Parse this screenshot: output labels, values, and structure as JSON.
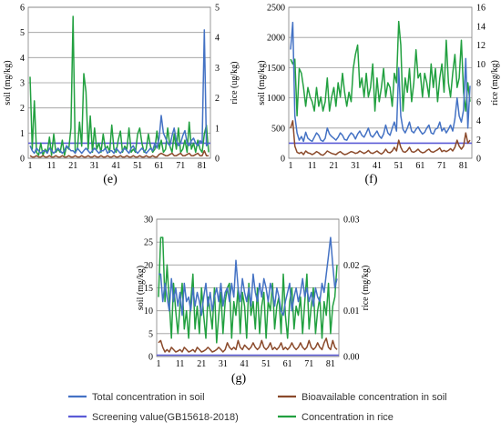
{
  "legend": [
    {
      "label": "Total concentration in soil",
      "color": "#4472c4"
    },
    {
      "label": "Bioavailable  concentration in soil",
      "color": "#8b4a2b"
    },
    {
      "label": "Screening value(GB15618-2018)",
      "color": "#5b5bd6"
    },
    {
      "label": "Concentration in rice",
      "color": "#22a040"
    }
  ],
  "chart_data": [
    {
      "type": "line",
      "panel_label": "(e)",
      "ylabel": "soil (mg/kg)",
      "y2label": "rice (ug/kg)",
      "ylim": [
        0,
        6
      ],
      "y2lim": [
        0,
        5
      ],
      "yticks": [
        0,
        1,
        2,
        3,
        4,
        5,
        6
      ],
      "y2ticks": [
        0,
        1,
        2,
        3,
        4,
        5
      ],
      "xticks": [
        1,
        11,
        21,
        31,
        41,
        51,
        61,
        71,
        81
      ],
      "grid": true,
      "screening_value": 0.6,
      "series": [
        {
          "name": "Total concentration in soil",
          "axis": "left",
          "color": "#4472c4",
          "values": [
            0.5,
            0.3,
            0.2,
            0.4,
            0.3,
            0.2,
            0.3,
            0.3,
            0.2,
            0.4,
            0.3,
            0.2,
            0.3,
            0.4,
            0.3,
            0.2,
            0.3,
            0.5,
            0.4,
            0.3,
            0.3,
            0.2,
            0.4,
            0.3,
            0.2,
            0.3,
            0.4,
            0.3,
            0.2,
            0.3,
            0.4,
            0.3,
            0.2,
            0.3,
            0.3,
            0.4,
            0.2,
            0.3,
            0.3,
            0.2,
            0.4,
            0.3,
            0.2,
            0.3,
            0.4,
            0.3,
            0.2,
            0.4,
            0.5,
            0.3,
            0.2,
            0.3,
            0.4,
            0.3,
            0.2,
            0.3,
            0.4,
            0.3,
            0.6,
            0.4,
            0.8,
            1.7,
            1.0,
            0.8,
            0.6,
            0.5,
            0.9,
            1.2,
            0.7,
            0.5,
            0.6,
            0.9,
            1.1,
            0.6,
            0.5,
            0.7,
            0.8,
            0.6,
            0.5,
            0.7,
            0.6,
            5.1,
            0.5,
            0.6
          ]
        },
        {
          "name": "Bioavailable  concentration in soil",
          "axis": "left",
          "color": "#8b4a2b",
          "values": [
            0.1,
            0.05,
            0.05,
            0.1,
            0.05,
            0.05,
            0.1,
            0.05,
            0.05,
            0.1,
            0.05,
            0.05,
            0.1,
            0.05,
            0.05,
            0.1,
            0.05,
            0.05,
            0.1,
            0.05,
            0.05,
            0.1,
            0.05,
            0.05,
            0.1,
            0.05,
            0.05,
            0.1,
            0.05,
            0.05,
            0.1,
            0.05,
            0.05,
            0.1,
            0.05,
            0.05,
            0.1,
            0.05,
            0.05,
            0.1,
            0.05,
            0.05,
            0.1,
            0.05,
            0.05,
            0.1,
            0.05,
            0.05,
            0.1,
            0.05,
            0.05,
            0.1,
            0.05,
            0.05,
            0.1,
            0.05,
            0.05,
            0.1,
            0.05,
            0.05,
            0.15,
            0.2,
            0.15,
            0.1,
            0.1,
            0.15,
            0.2,
            0.1,
            0.1,
            0.15,
            0.2,
            0.1,
            0.1,
            0.15,
            0.2,
            0.1,
            0.1,
            0.15,
            0.2,
            0.1,
            0.1,
            0.3,
            0.1,
            0.1
          ]
        },
        {
          "name": "Concentration in rice",
          "axis": "right",
          "color": "#22a040",
          "values": [
            2.7,
            0.3,
            1.9,
            0.2,
            0.1,
            0.5,
            0.1,
            0.3,
            0.2,
            0.7,
            0.1,
            0.8,
            0.2,
            0.3,
            0.2,
            0.6,
            0.1,
            0.4,
            0.3,
            1.0,
            4.7,
            0.2,
            0.3,
            1.2,
            0.4,
            2.8,
            2.2,
            0.3,
            1.4,
            0.2,
            1.0,
            0.3,
            0.5,
            0.2,
            0.8,
            0.3,
            0.4,
            0.2,
            1.1,
            0.3,
            0.2,
            0.6,
            0.9,
            0.2,
            0.4,
            0.3,
            1.0,
            0.2,
            0.3,
            0.2,
            0.8,
            1.0,
            0.5,
            0.2,
            0.3,
            0.8,
            0.4,
            0.2,
            0.3,
            0.9,
            0.3,
            0.6,
            0.2,
            0.3,
            1.0,
            0.4,
            0.2,
            0.8,
            0.3,
            1.0,
            0.2,
            0.3,
            0.6,
            0.2,
            1.2,
            0.3,
            0.5,
            0.2,
            0.6,
            0.3,
            0.2,
            0.8,
            1.1,
            0.2
          ]
        }
      ]
    },
    {
      "type": "line",
      "panel_label": "(f)",
      "ylabel": "soil (mg/kg)",
      "y2label": "rice (mg/kg)",
      "ylim": [
        0,
        2500
      ],
      "y2lim": [
        0,
        16
      ],
      "yticks": [
        0,
        500,
        1000,
        1500,
        2000,
        2500
      ],
      "y2ticks": [
        0,
        2,
        4,
        6,
        8,
        10,
        12,
        14,
        16
      ],
      "xticks": [
        1,
        11,
        21,
        31,
        41,
        51,
        61,
        71,
        81
      ],
      "grid": true,
      "screening_value": 250,
      "series": [
        {
          "name": "Total concentration in soil",
          "axis": "left",
          "color": "#4472c4",
          "values": [
            1800,
            2250,
            700,
            420,
            300,
            360,
            280,
            430,
            330,
            300,
            280,
            350,
            420,
            380,
            300,
            280,
            330,
            500,
            400,
            360,
            330,
            300,
            350,
            420,
            380,
            310,
            300,
            370,
            420,
            390,
            320,
            400,
            450,
            380,
            350,
            420,
            500,
            380,
            350,
            400,
            450,
            370,
            330,
            400,
            550,
            420,
            380,
            500,
            600,
            450,
            1500,
            700,
            480,
            420,
            500,
            600,
            450,
            420,
            480,
            520,
            450,
            400,
            430,
            500,
            550,
            420,
            400,
            480,
            500,
            600,
            450,
            500,
            420,
            480,
            550,
            450,
            650,
            1000,
            700,
            600,
            800,
            1650,
            500,
            1200
          ]
        },
        {
          "name": "Bioavailable  concentration in soil",
          "axis": "left",
          "color": "#8b4a2b",
          "values": [
            500,
            620,
            200,
            100,
            80,
            100,
            60,
            120,
            90,
            80,
            60,
            80,
            110,
            90,
            60,
            50,
            80,
            120,
            100,
            80,
            70,
            60,
            90,
            110,
            80,
            60,
            70,
            90,
            110,
            100,
            80,
            90,
            120,
            100,
            80,
            100,
            130,
            90,
            80,
            100,
            120,
            90,
            70,
            100,
            150,
            100,
            90,
            120,
            180,
            120,
            300,
            180,
            110,
            100,
            130,
            180,
            110,
            100,
            120,
            150,
            110,
            90,
            100,
            130,
            150,
            110,
            100,
            120,
            140,
            170,
            110,
            130,
            110,
            130,
            160,
            120,
            180,
            300,
            200,
            150,
            200,
            420,
            250,
            300
          ]
        },
        {
          "name": "Concentration in rice",
          "axis": "right",
          "color": "#22a040",
          "values": [
            10.5,
            10.0,
            10.5,
            4.5,
            9.5,
            9.0,
            7.5,
            5.5,
            7.5,
            6.5,
            6.0,
            5.0,
            7.5,
            5.5,
            6.5,
            5.0,
            6.0,
            8.5,
            5.0,
            6.5,
            7.5,
            5.5,
            8.0,
            6.5,
            9.0,
            7.0,
            5.5,
            7.0,
            6.0,
            9.5,
            11.0,
            12.0,
            7.5,
            8.5,
            6.5,
            9.0,
            6.5,
            7.5,
            10.0,
            5.0,
            8.5,
            6.0,
            7.5,
            9.5,
            6.5,
            8.0,
            7.5,
            5.5,
            9.0,
            8.0,
            14.5,
            12.0,
            5.0,
            8.5,
            7.0,
            9.5,
            6.0,
            8.0,
            11.5,
            8.5,
            9.0,
            6.5,
            9.0,
            8.0,
            6.5,
            10.0,
            7.5,
            9.5,
            6.0,
            8.5,
            10.0,
            7.0,
            12.5,
            8.0,
            6.5,
            9.0,
            11.0,
            7.5,
            8.5,
            12.5,
            7.0,
            5.0,
            8.0,
            6.0
          ]
        }
      ]
    },
    {
      "type": "line",
      "panel_label": "(g)",
      "ylabel": "soil (mg/kg)",
      "y2label": "rice (mg/kg)",
      "ylim": [
        0,
        30
      ],
      "y2lim": [
        0,
        0.03
      ],
      "yticks": [
        0,
        5,
        10,
        15,
        20,
        25,
        30
      ],
      "y2ticks": [
        "0.00",
        "0.01",
        "0.02",
        "0.03"
      ],
      "xticks": [
        1,
        11,
        21,
        31,
        41,
        51,
        61,
        71,
        81
      ],
      "grid": true,
      "screening_value": 0.3,
      "series": [
        {
          "name": "Total concentration in soil",
          "axis": "left",
          "color": "#4472c4",
          "values": [
            18,
            18,
            12,
            16,
            13,
            10,
            17,
            12,
            15,
            11,
            14,
            9,
            16,
            12,
            13,
            10,
            15,
            11,
            14,
            12,
            9,
            13,
            16,
            11,
            14,
            10,
            13,
            15,
            12,
            16,
            11,
            14,
            15,
            12,
            16,
            13,
            21,
            15,
            12,
            17,
            14,
            12,
            15,
            11,
            18,
            14,
            12,
            16,
            13,
            17,
            15,
            12,
            16,
            14,
            11,
            15,
            13,
            10,
            9,
            12,
            14,
            16,
            10,
            13,
            15,
            12,
            14,
            17,
            13,
            15,
            12,
            14,
            11,
            15,
            13,
            12,
            16,
            14,
            18,
            22,
            26,
            20,
            15,
            17
          ]
        },
        {
          "name": "Bioavailable  concentration in soil",
          "axis": "left",
          "color": "#8b4a2b",
          "values": [
            3,
            3.5,
            2,
            1,
            1.5,
            1,
            2,
            1.5,
            1,
            1.2,
            1.5,
            1,
            2,
            1.5,
            1,
            1.2,
            1.5,
            1,
            2,
            1.5,
            1,
            1.2,
            1.5,
            2,
            1.5,
            1,
            1.2,
            1.5,
            2,
            1.5,
            1,
            1.5,
            3,
            2,
            1.5,
            2,
            1.5,
            3.5,
            2,
            1.5,
            2.5,
            2,
            1.5,
            2,
            3,
            2,
            1.5,
            2,
            3.5,
            2,
            1.5,
            2,
            3,
            1.5,
            2,
            1.5,
            2,
            3,
            1.5,
            2,
            1.5,
            2,
            3,
            2,
            1.5,
            2,
            3,
            2,
            1.5,
            2,
            3.5,
            2,
            1.5,
            2,
            3,
            2,
            1.5,
            3,
            4,
            2,
            1.5,
            3.5,
            2,
            1.5
          ]
        },
        {
          "name": "Concentration in rice",
          "axis": "right",
          "color": "#22a040",
          "values": [
            0.013,
            0.026,
            0.026,
            0.012,
            0.02,
            0.012,
            0.004,
            0.016,
            0.01,
            0.005,
            0.011,
            0.016,
            0.006,
            0.01,
            0.004,
            0.012,
            0.018,
            0.006,
            0.011,
            0.005,
            0.015,
            0.009,
            0.004,
            0.013,
            0.01,
            0.006,
            0.015,
            0.003,
            0.009,
            0.014,
            0.005,
            0.012,
            0.015,
            0.016,
            0.004,
            0.012,
            0.009,
            0.015,
            0.005,
            0.014,
            0.011,
            0.004,
            0.016,
            0.009,
            0.012,
            0.006,
            0.015,
            0.005,
            0.011,
            0.014,
            0.004,
            0.012,
            0.01,
            0.016,
            0.006,
            0.011,
            0.013,
            0.005,
            0.018,
            0.009,
            0.004,
            0.012,
            0.015,
            0.006,
            0.011,
            0.009,
            0.013,
            0.005,
            0.012,
            0.018,
            0.006,
            0.011,
            0.015,
            0.005,
            0.01,
            0.013,
            0.004,
            0.012,
            0.009,
            0.016,
            0.005,
            0.011,
            0.013,
            0.02
          ]
        }
      ]
    }
  ]
}
